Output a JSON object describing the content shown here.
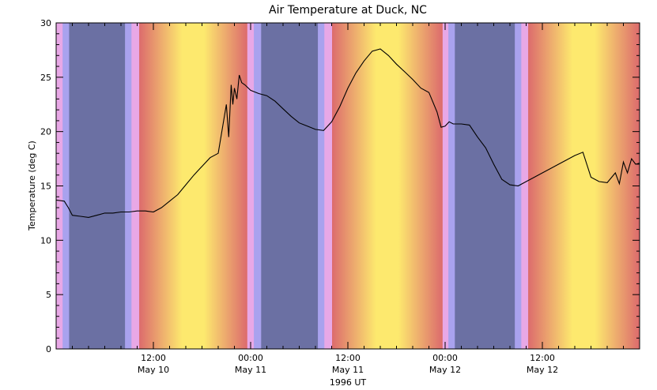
{
  "chart_data": {
    "type": "line",
    "title": "Air Temperature at Duck, NC",
    "xlabel": "1996 UT",
    "ylabel": "Temperature (deg C)",
    "ylim": [
      0,
      30
    ],
    "yticks": [
      0,
      5,
      10,
      15,
      20,
      25,
      30
    ],
    "xlim_hours": [
      0,
      72
    ],
    "x_units": "hours from 1996-05-10 00:00 UT (approx.)",
    "xticks": [
      {
        "hour": 12,
        "time": "12:00",
        "date": "May 10"
      },
      {
        "hour": 24,
        "time": "00:00",
        "date": "May 11"
      },
      {
        "hour": 36,
        "time": "12:00",
        "date": "May 11"
      },
      {
        "hour": 48,
        "time": "00:00",
        "date": "May 12"
      },
      {
        "hour": 60,
        "time": "12:00",
        "date": "May 12"
      }
    ],
    "background": "day/night shading (night = slate blue, twilight = lavender/pink, day = red-orange to yellow)",
    "colors": {
      "night": "#6b70a3",
      "twilight_blue": "#a9a2ee",
      "twilight_pink": "#e8a8e6",
      "dusk_dawn_red": "#dc6a6d",
      "midday_yellow": "#fde96e",
      "line": "#000000"
    },
    "series": [
      {
        "name": "",
        "x": [
          0,
          1,
          1.5,
          2,
          3,
          4,
          5,
          6,
          7,
          8,
          9,
          10,
          11,
          12,
          13,
          14,
          15,
          16,
          17,
          18,
          19,
          20,
          21,
          21.3,
          21.6,
          21.8,
          22,
          22.3,
          22.6,
          22.9,
          23.3,
          24,
          25,
          26,
          27,
          28,
          29,
          30,
          31,
          32,
          33,
          34,
          35,
          36,
          37,
          38,
          39,
          40,
          41,
          42,
          43,
          44,
          45,
          46,
          47,
          47.5,
          48,
          48.5,
          49,
          50,
          51,
          52,
          53,
          54,
          55,
          56,
          57,
          58,
          59,
          60,
          61,
          62,
          63,
          64,
          65,
          66,
          67,
          68,
          69,
          69.5,
          70,
          70.5,
          71,
          71.5,
          72
        ],
        "values": [
          13.7,
          13.6,
          13.0,
          12.3,
          12.2,
          12.1,
          12.3,
          12.5,
          12.5,
          12.6,
          12.6,
          12.7,
          12.7,
          12.6,
          13.0,
          13.6,
          14.2,
          15.1,
          16.0,
          16.8,
          17.6,
          18.0,
          22.5,
          19.5,
          24.3,
          22.5,
          24.0,
          23.0,
          25.2,
          24.5,
          24.3,
          23.8,
          23.5,
          23.3,
          22.8,
          22.1,
          21.4,
          20.8,
          20.5,
          20.2,
          20.1,
          20.9,
          22.3,
          24.0,
          25.4,
          26.5,
          27.4,
          27.6,
          27.0,
          26.2,
          25.5,
          24.8,
          24.0,
          23.6,
          21.8,
          20.4,
          20.5,
          20.9,
          20.7,
          20.7,
          20.6,
          19.5,
          18.5,
          17.0,
          15.6,
          15.1,
          15.0,
          15.4,
          15.8,
          16.2,
          16.6,
          17.0,
          17.4,
          17.8,
          18.1,
          15.8,
          15.4,
          15.3,
          16.2,
          15.2,
          17.2,
          16.2,
          17.5,
          17.0,
          17.1
        ]
      }
    ]
  }
}
